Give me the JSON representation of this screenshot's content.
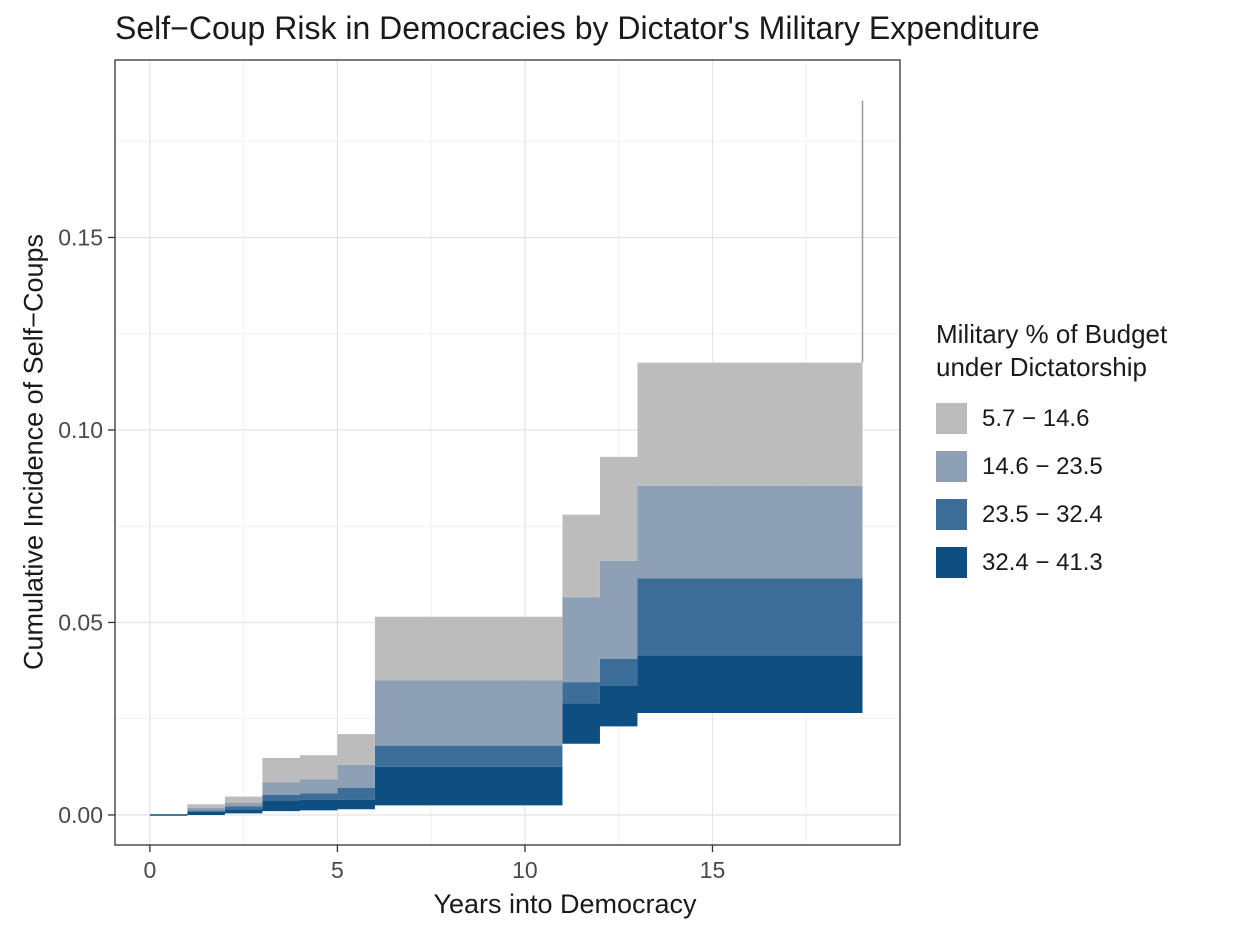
{
  "chart_data": {
    "type": "area",
    "variant": "stacked-step-cumulative-incidence",
    "title": "Self−Coup Risk in Democracies by Dictator's Military Expenditure",
    "xlabel": "Years into Democracy",
    "ylabel": "Cumulative Incidence of Self−Coups",
    "x_ticks": [
      0,
      5,
      10,
      15
    ],
    "x_tick_labels": [
      "0",
      "5",
      "10",
      "15"
    ],
    "y_tick_values": [
      0,
      0.05,
      0.1,
      0.15
    ],
    "y_tick_labels": [
      "0.00",
      "0.05",
      "0.10",
      "0.15"
    ],
    "x_minor": [
      2.5,
      7.5,
      12.5,
      17.5
    ],
    "y_minor": [
      0.025,
      0.075,
      0.125,
      0.175
    ],
    "xlim": [
      -0.93,
      20.0
    ],
    "ylim": [
      -0.0078,
      0.1961
    ],
    "grid": true,
    "panel": {
      "background": "#ffffff",
      "border_color": "#333333",
      "grid_major_color": "#e4e4e4",
      "grid_minor_color": "#f1f1f1",
      "tick_color": "#333333",
      "tick_label_color": "#4a4a4a"
    },
    "legend": {
      "position": "right",
      "title_lines": [
        "Military % of Budget",
        "under Dictatorship"
      ],
      "items": [
        {
          "label": "5.7 − 14.6",
          "color": "#bcbcbc"
        },
        {
          "label": "14.6 − 23.5",
          "color": "#8da0b5"
        },
        {
          "label": "23.5 − 32.4",
          "color": "#3d6e99"
        },
        {
          "label": "32.4 − 41.3",
          "color": "#0f4e81"
        }
      ]
    },
    "segments_note": "Step segments; b = stacked boundaries bottom→top: [base, top of 32.4−41.3, top of 23.5−32.4, top of 14.6−23.5, top of 5.7−14.6]",
    "segments": [
      {
        "x0": 0,
        "x1": 1,
        "b": [
          0,
          0,
          0,
          0,
          0
        ]
      },
      {
        "x0": 1,
        "x1": 2,
        "b": [
          0,
          0.0008,
          0.0012,
          0.0018,
          0.0028
        ]
      },
      {
        "x0": 2,
        "x1": 3,
        "b": [
          0.0004,
          0.0015,
          0.0022,
          0.0032,
          0.0048
        ]
      },
      {
        "x0": 3,
        "x1": 4,
        "b": [
          0.001,
          0.0038,
          0.0052,
          0.0085,
          0.0148
        ]
      },
      {
        "x0": 4,
        "x1": 5,
        "b": [
          0.0012,
          0.004,
          0.0056,
          0.0092,
          0.0155
        ]
      },
      {
        "x0": 5,
        "x1": 6,
        "b": [
          0.0015,
          0.004,
          0.007,
          0.013,
          0.021
        ]
      },
      {
        "x0": 6,
        "x1": 11,
        "b": [
          0.0025,
          0.0125,
          0.018,
          0.035,
          0.0515
        ]
      },
      {
        "x0": 11,
        "x1": 12,
        "b": [
          0.0185,
          0.029,
          0.0345,
          0.0565,
          0.078
        ]
      },
      {
        "x0": 12,
        "x1": 13,
        "b": [
          0.023,
          0.0335,
          0.0405,
          0.066,
          0.093
        ]
      },
      {
        "x0": 13,
        "x1": 19,
        "b": [
          0.0265,
          0.0415,
          0.0615,
          0.0855,
          0.1175
        ]
      }
    ],
    "baseline_segment": {
      "x0": 0,
      "x1": 1,
      "y": 0,
      "color": "#0f4e81"
    },
    "final_spike": {
      "x": 19,
      "y0": 0.1175,
      "y1": 0.1855,
      "color": "#9b9b9b"
    }
  }
}
